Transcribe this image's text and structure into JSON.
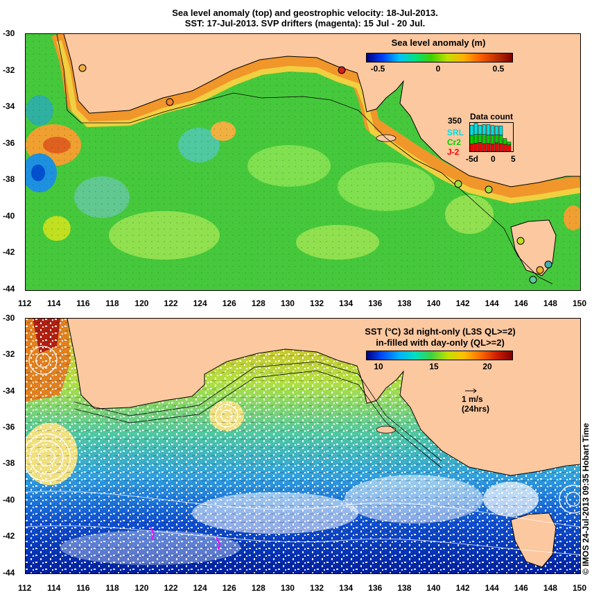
{
  "title_line1": "Sea level anomaly (top) and geostrophic velocity: 18-Jul-2013.",
  "title_line2": "SST: 17-Jul-2013. SVP drifters (magenta): 15 Jul - 20 Jul.",
  "x_ticks": [
    "112",
    "114",
    "116",
    "118",
    "120",
    "122",
    "124",
    "126",
    "128",
    "130",
    "132",
    "134",
    "136",
    "138",
    "140",
    "142",
    "144",
    "146",
    "148",
    "150"
  ],
  "y_ticks": [
    "-30",
    "-32",
    "-34",
    "-36",
    "-38",
    "-40",
    "-42",
    "-44"
  ],
  "sla_colorbar": {
    "title": "Sea level anomaly (m)",
    "labels": [
      "-0.5",
      "0",
      "0.5"
    ],
    "colors": [
      "#000080",
      "#0040ff",
      "#00c0ff",
      "#00e080",
      "#40d000",
      "#c0e000",
      "#ffb000",
      "#ff6000",
      "#c03000",
      "#800000"
    ]
  },
  "data_count": {
    "title": "Data count",
    "max_label": "350",
    "missions": [
      {
        "name": "SRL",
        "color": "#00e0e0"
      },
      {
        "name": "Cr2",
        "color": "#00d000"
      },
      {
        "name": "J-2",
        "color": "#ff0000"
      }
    ],
    "axis_labels": [
      "-5d",
      "0",
      "5"
    ],
    "bars": [
      {
        "j2": 0.25,
        "cr2": 0.3,
        "srl": 0.35
      },
      {
        "j2": 0.28,
        "cr2": 0.3,
        "srl": 0.38
      },
      {
        "j2": 0.3,
        "cr2": 0.28,
        "srl": 0.32
      },
      {
        "j2": 0.26,
        "cr2": 0.32,
        "srl": 0.34
      },
      {
        "j2": 0.27,
        "cr2": 0.29,
        "srl": 0.36
      },
      {
        "j2": 0.25,
        "cr2": 0.31,
        "srl": 0.33
      },
      {
        "j2": 0.29,
        "cr2": 0.28,
        "srl": 0.3
      },
      {
        "j2": 0.26,
        "cr2": 0.3,
        "srl": 0.31
      },
      {
        "j2": 0.24,
        "cr2": 0.2,
        "srl": 0.0
      },
      {
        "j2": 0.22,
        "cr2": 0.1,
        "srl": 0.0
      }
    ]
  },
  "sst_colorbar": {
    "title_line1": "SST (°C) 3d night-only (L3S QL>=2)",
    "title_line2": "in-filled with day-only (QL>=2)",
    "labels": [
      "10",
      "15",
      "20"
    ],
    "colors": [
      "#000080",
      "#0050ff",
      "#00b0ff",
      "#00e0c0",
      "#40d040",
      "#c0e000",
      "#ffc000",
      "#ff7000",
      "#d02000",
      "#800000"
    ]
  },
  "velocity_scale": {
    "label_line1": "1 m/s",
    "label_line2": "(24hrs)"
  },
  "credit": "© IMOS 24-Jul-2013 09:35 Hobart Time",
  "colors": {
    "land": "#fcc8a0",
    "ocean_green": "#3cc83c",
    "ocean_light": "#8ce85a",
    "coast_orange": "#f08c28"
  }
}
